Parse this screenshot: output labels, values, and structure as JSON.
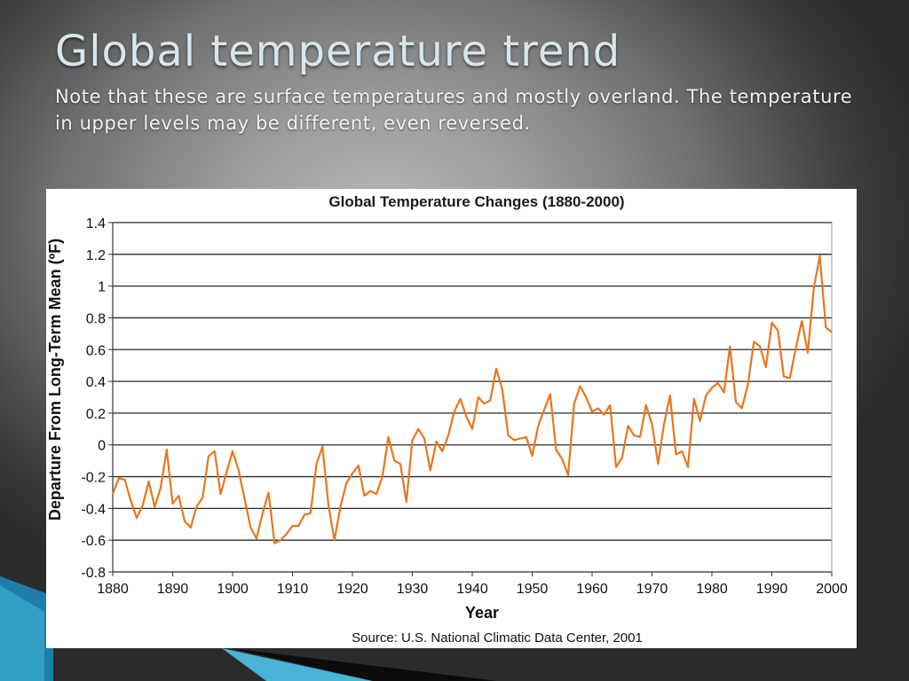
{
  "slide": {
    "title": "Global temperature trend",
    "note": "Note that these are surface temperatures and mostly overland. The temperature in upper levels may be different, even reversed."
  },
  "colors": {
    "line": "#e8761e",
    "grid": "#2a2a2a",
    "axis": "#333333"
  },
  "chart_data": {
    "type": "line",
    "title": "Global Temperature Changes (1880-2000)",
    "xlabel": "Year",
    "ylabel": "Departure From Long-Term Mean (ºF)",
    "source": "Source: U.S. National Climatic Data Center, 2001",
    "xlim": [
      1880,
      2000
    ],
    "ylim": [
      -0.8,
      1.4
    ],
    "x_ticks": [
      1880,
      1890,
      1900,
      1910,
      1920,
      1930,
      1940,
      1950,
      1960,
      1970,
      1980,
      1990,
      2000
    ],
    "x_tick_labels": [
      "1880",
      "1890",
      "1900",
      "1910",
      "1920",
      "1930",
      "1940",
      "1950",
      "1960",
      "1970",
      "1980",
      "1990",
      "2000"
    ],
    "y_ticks": [
      1.4,
      1.2,
      1,
      0.8,
      0.6,
      0.4,
      0.2,
      0,
      -0.2,
      -0.4,
      -0.6,
      -0.8
    ],
    "y_tick_labels": [
      "1.4",
      "1.2",
      "1",
      "0.8",
      "0.6",
      "0.4",
      "0.2",
      "0",
      "-0.2",
      "-0.4",
      "-0.6",
      "-0.8"
    ],
    "grid": true,
    "series": [
      {
        "x": [
          1880,
          1881,
          1882,
          1883,
          1884,
          1885,
          1886,
          1887,
          1888,
          1889,
          1890,
          1891,
          1892,
          1893,
          1894,
          1895,
          1896,
          1897,
          1898,
          1899,
          1900,
          1901,
          1902,
          1903,
          1904,
          1905,
          1906,
          1907,
          1908,
          1909,
          1910,
          1911,
          1912,
          1913,
          1914,
          1915,
          1916,
          1917,
          1918,
          1919,
          1920,
          1921,
          1922,
          1923,
          1924,
          1925,
          1926,
          1927,
          1928,
          1929,
          1930,
          1931,
          1932,
          1933,
          1934,
          1935,
          1936,
          1937,
          1938,
          1939,
          1940,
          1941,
          1942,
          1943,
          1944,
          1945,
          1946,
          1947,
          1948,
          1949,
          1950,
          1951,
          1952,
          1953,
          1954,
          1955,
          1956,
          1957,
          1958,
          1959,
          1960,
          1961,
          1962,
          1963,
          1964,
          1965,
          1966,
          1967,
          1968,
          1969,
          1970,
          1971,
          1972,
          1973,
          1974,
          1975,
          1976,
          1977,
          1978,
          1979,
          1980,
          1981,
          1982,
          1983,
          1984,
          1985,
          1986,
          1987,
          1988,
          1989,
          1990,
          1991,
          1992,
          1993,
          1994,
          1995,
          1996,
          1997,
          1998,
          1999,
          2000
        ],
        "y": [
          -0.31,
          -0.21,
          -0.22,
          -0.35,
          -0.46,
          -0.38,
          -0.23,
          -0.39,
          -0.27,
          -0.03,
          -0.37,
          -0.32,
          -0.48,
          -0.52,
          -0.39,
          -0.33,
          -0.07,
          -0.04,
          -0.31,
          -0.17,
          -0.04,
          -0.16,
          -0.34,
          -0.52,
          -0.59,
          -0.43,
          -0.3,
          -0.62,
          -0.6,
          -0.56,
          -0.51,
          -0.51,
          -0.44,
          -0.43,
          -0.12,
          -0.01,
          -0.38,
          -0.6,
          -0.39,
          -0.24,
          -0.18,
          -0.13,
          -0.32,
          -0.29,
          -0.31,
          -0.2,
          0.05,
          -0.1,
          -0.12,
          -0.36,
          0.03,
          0.1,
          0.04,
          -0.16,
          0.02,
          -0.04,
          0.06,
          0.21,
          0.29,
          0.18,
          0.1,
          0.3,
          0.26,
          0.28,
          0.48,
          0.35,
          0.06,
          0.03,
          0.04,
          0.05,
          -0.07,
          0.12,
          0.22,
          0.32,
          -0.03,
          -0.09,
          -0.19,
          0.26,
          0.37,
          0.3,
          0.21,
          0.23,
          0.19,
          0.25,
          -0.14,
          -0.08,
          0.12,
          0.06,
          0.05,
          0.25,
          0.13,
          -0.12,
          0.13,
          0.31,
          -0.06,
          -0.04,
          -0.14,
          0.29,
          0.15,
          0.31,
          0.36,
          0.39,
          0.33,
          0.62,
          0.27,
          0.23,
          0.38,
          0.65,
          0.62,
          0.49,
          0.77,
          0.72,
          0.43,
          0.42,
          0.61,
          0.78,
          0.58,
          0.99,
          1.19,
          0.74,
          0.71
        ]
      }
    ]
  }
}
